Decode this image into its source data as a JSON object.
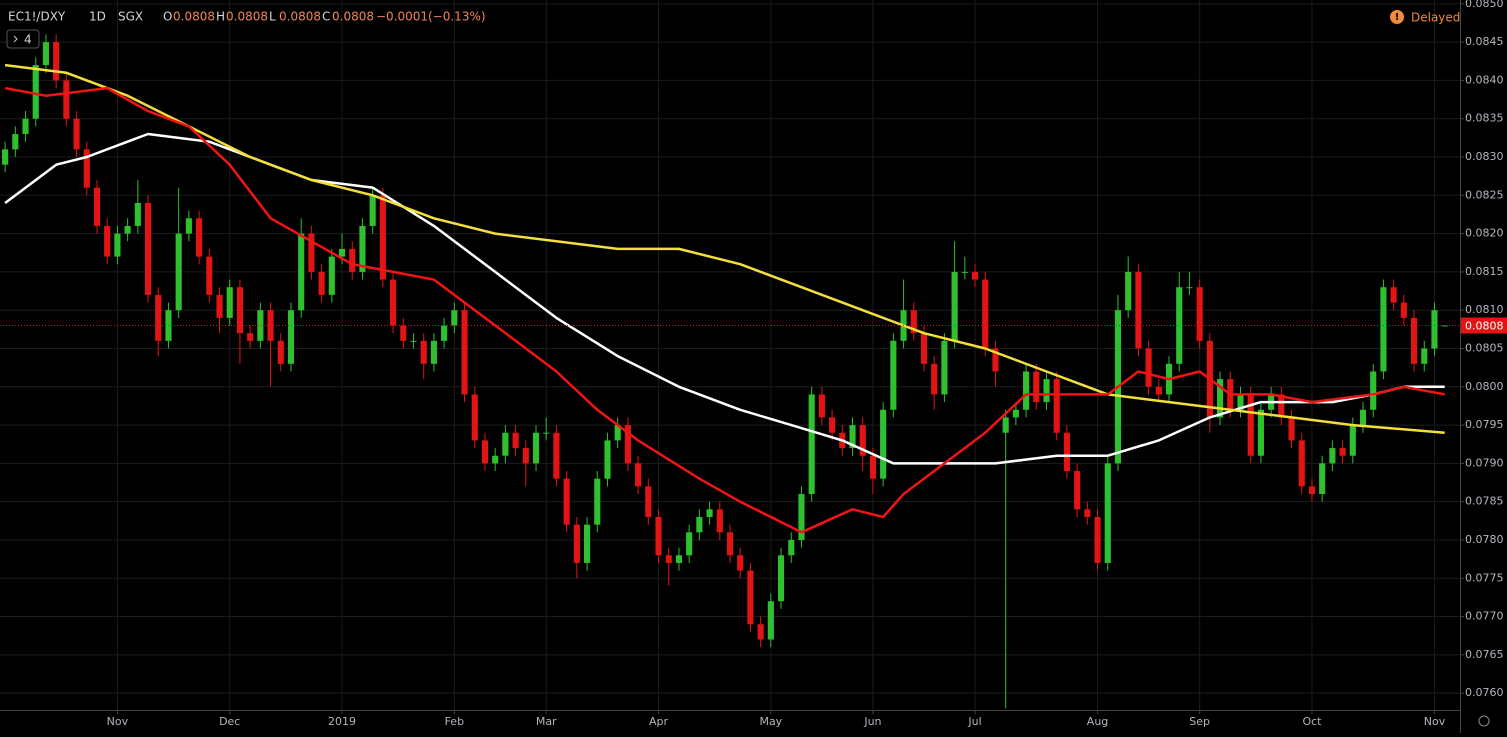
{
  "chart_data": {
    "type": "candlestick",
    "symbol": "EC1!/DXY",
    "interval": "1D",
    "exchange": "SGX",
    "ohlc": [
      {
        "label": "O",
        "value": "0.0808"
      },
      {
        "label": "H",
        "value": "0.0808"
      },
      {
        "label": "L",
        "value": "0.0808"
      },
      {
        "label": "C",
        "value": "0.0808"
      }
    ],
    "change": "−0.0001",
    "change_pct": "(−0.13%)",
    "indicators_button": "4",
    "status": "Delayed",
    "last_price": {
      "value": 0.0808,
      "label": "0.0808"
    },
    "up_color": "#2fbf2f",
    "down_color": "#e31414",
    "grid": true,
    "ylim": [
      0.07578,
      0.08505
    ],
    "xlim": [
      -0.5,
      142.5
    ],
    "yticks": [
      {
        "value": 0.076,
        "label": "0.0760"
      },
      {
        "value": 0.0765,
        "label": "0.0765"
      },
      {
        "value": 0.077,
        "label": "0.0770"
      },
      {
        "value": 0.0775,
        "label": "0.0775"
      },
      {
        "value": 0.078,
        "label": "0.0780"
      },
      {
        "value": 0.0785,
        "label": "0.0785"
      },
      {
        "value": 0.079,
        "label": "0.0790"
      },
      {
        "value": 0.0795,
        "label": "0.0795"
      },
      {
        "value": 0.08,
        "label": "0.0800"
      },
      {
        "value": 0.0805,
        "label": "0.0805"
      },
      {
        "value": 0.081,
        "label": "0.0810"
      },
      {
        "value": 0.0815,
        "label": "0.0815"
      },
      {
        "value": 0.082,
        "label": "0.0820"
      },
      {
        "value": 0.0825,
        "label": "0.0825"
      },
      {
        "value": 0.083,
        "label": "0.0830"
      },
      {
        "value": 0.0835,
        "label": "0.0835"
      },
      {
        "value": 0.084,
        "label": "0.0840"
      },
      {
        "value": 0.0845,
        "label": "0.0845"
      },
      {
        "value": 0.085,
        "label": "0.0850"
      }
    ],
    "xticks": [
      {
        "value": 11,
        "label": "Nov"
      },
      {
        "value": 22,
        "label": "Dec"
      },
      {
        "value": 33,
        "label": "2019"
      },
      {
        "value": 44,
        "label": "Feb"
      },
      {
        "value": 53,
        "label": "Mar"
      },
      {
        "value": 64,
        "label": "Apr"
      },
      {
        "value": 75,
        "label": "May"
      },
      {
        "value": 85,
        "label": "Jun"
      },
      {
        "value": 95,
        "label": "Jul"
      },
      {
        "value": 107,
        "label": "Aug"
      },
      {
        "value": 117,
        "label": "Sep"
      },
      {
        "value": 128,
        "label": "Oct"
      },
      {
        "value": 140,
        "label": "Nov"
      }
    ],
    "candles": [
      [
        0.0829,
        0.0832,
        0.0828,
        0.0831
      ],
      [
        0.0831,
        0.0834,
        0.083,
        0.0833
      ],
      [
        0.0833,
        0.0836,
        0.0832,
        0.0835
      ],
      [
        0.0835,
        0.0843,
        0.0834,
        0.0842
      ],
      [
        0.0842,
        0.0846,
        0.0841,
        0.0845
      ],
      [
        0.0845,
        0.0846,
        0.0839,
        0.084
      ],
      [
        0.084,
        0.0841,
        0.0834,
        0.0835
      ],
      [
        0.0835,
        0.0836,
        0.083,
        0.0831
      ],
      [
        0.0831,
        0.0832,
        0.0825,
        0.0826
      ],
      [
        0.0826,
        0.0827,
        0.082,
        0.0821
      ],
      [
        0.0821,
        0.0822,
        0.0816,
        0.0817
      ],
      [
        0.0817,
        0.0821,
        0.0816,
        0.082
      ],
      [
        0.082,
        0.0822,
        0.0819,
        0.0821
      ],
      [
        0.0821,
        0.0827,
        0.082,
        0.0824
      ],
      [
        0.0824,
        0.0825,
        0.0811,
        0.0812
      ],
      [
        0.0812,
        0.0813,
        0.0804,
        0.0806
      ],
      [
        0.0806,
        0.0811,
        0.0805,
        0.081
      ],
      [
        0.081,
        0.0826,
        0.0809,
        0.082
      ],
      [
        0.082,
        0.0823,
        0.0819,
        0.0822
      ],
      [
        0.0822,
        0.0823,
        0.0816,
        0.0817
      ],
      [
        0.0817,
        0.0818,
        0.0811,
        0.0812
      ],
      [
        0.0812,
        0.0813,
        0.0807,
        0.0809
      ],
      [
        0.0809,
        0.0814,
        0.0808,
        0.0813
      ],
      [
        0.0813,
        0.0814,
        0.0803,
        0.0807
      ],
      [
        0.0807,
        0.0808,
        0.0805,
        0.0806
      ],
      [
        0.0806,
        0.0811,
        0.0805,
        0.081
      ],
      [
        0.081,
        0.0811,
        0.08,
        0.0806
      ],
      [
        0.0806,
        0.0807,
        0.0802,
        0.0803
      ],
      [
        0.0803,
        0.0811,
        0.0802,
        0.081
      ],
      [
        0.081,
        0.0822,
        0.0809,
        0.082
      ],
      [
        0.082,
        0.0821,
        0.0814,
        0.0815
      ],
      [
        0.0815,
        0.0816,
        0.0811,
        0.0812
      ],
      [
        0.0812,
        0.0818,
        0.0811,
        0.0817
      ],
      [
        0.0817,
        0.082,
        0.0816,
        0.0818
      ],
      [
        0.0818,
        0.0819,
        0.0814,
        0.0815
      ],
      [
        0.0815,
        0.0822,
        0.0814,
        0.0821
      ],
      [
        0.0821,
        0.0826,
        0.082,
        0.0825
      ],
      [
        0.0825,
        0.0826,
        0.0813,
        0.0814
      ],
      [
        0.0814,
        0.0815,
        0.0807,
        0.0808
      ],
      [
        0.0808,
        0.0809,
        0.0805,
        0.0806
      ],
      [
        0.0806,
        0.0807,
        0.0805,
        0.0806
      ],
      [
        0.0806,
        0.0807,
        0.0801,
        0.0803
      ],
      [
        0.0803,
        0.0807,
        0.0802,
        0.0806
      ],
      [
        0.0806,
        0.0809,
        0.0805,
        0.0808
      ],
      [
        0.0808,
        0.0811,
        0.0807,
        0.081
      ],
      [
        0.081,
        0.0811,
        0.0798,
        0.0799
      ],
      [
        0.0799,
        0.08,
        0.0792,
        0.0793
      ],
      [
        0.0793,
        0.0794,
        0.0789,
        0.079
      ],
      [
        0.079,
        0.0792,
        0.0789,
        0.0791
      ],
      [
        0.0791,
        0.0795,
        0.079,
        0.0794
      ],
      [
        0.0794,
        0.0795,
        0.0791,
        0.0792
      ],
      [
        0.0792,
        0.0793,
        0.0787,
        0.079
      ],
      [
        0.079,
        0.0795,
        0.0789,
        0.0794
      ],
      [
        0.0794,
        0.0796,
        0.0793,
        0.0794
      ],
      [
        0.0794,
        0.0795,
        0.0787,
        0.0788
      ],
      [
        0.0788,
        0.0789,
        0.0781,
        0.0782
      ],
      [
        0.0782,
        0.0783,
        0.0775,
        0.0777
      ],
      [
        0.0777,
        0.0783,
        0.0776,
        0.0782
      ],
      [
        0.0782,
        0.0789,
        0.0781,
        0.0788
      ],
      [
        0.0788,
        0.0794,
        0.0787,
        0.0793
      ],
      [
        0.0793,
        0.0796,
        0.0792,
        0.0795
      ],
      [
        0.0795,
        0.0796,
        0.0789,
        0.079
      ],
      [
        0.079,
        0.0791,
        0.0786,
        0.0787
      ],
      [
        0.0787,
        0.0788,
        0.0782,
        0.0783
      ],
      [
        0.0783,
        0.0784,
        0.0777,
        0.0778
      ],
      [
        0.0778,
        0.0779,
        0.0774,
        0.0777
      ],
      [
        0.0777,
        0.0779,
        0.0776,
        0.0778
      ],
      [
        0.0778,
        0.0782,
        0.0777,
        0.0781
      ],
      [
        0.0781,
        0.0784,
        0.078,
        0.0783
      ],
      [
        0.0783,
        0.0785,
        0.0782,
        0.0784
      ],
      [
        0.0784,
        0.0785,
        0.078,
        0.0781
      ],
      [
        0.0781,
        0.0782,
        0.0777,
        0.0778
      ],
      [
        0.0778,
        0.0779,
        0.0775,
        0.0776
      ],
      [
        0.0776,
        0.0777,
        0.0768,
        0.0769
      ],
      [
        0.0769,
        0.077,
        0.0766,
        0.0767
      ],
      [
        0.0767,
        0.0773,
        0.0766,
        0.0772
      ],
      [
        0.0772,
        0.0779,
        0.0771,
        0.0778
      ],
      [
        0.0778,
        0.0781,
        0.0777,
        0.078
      ],
      [
        0.078,
        0.0787,
        0.0779,
        0.0786
      ],
      [
        0.0786,
        0.08,
        0.0785,
        0.0799
      ],
      [
        0.0799,
        0.08,
        0.0795,
        0.0796
      ],
      [
        0.0796,
        0.0797,
        0.0793,
        0.0794
      ],
      [
        0.0794,
        0.0795,
        0.0791,
        0.0792
      ],
      [
        0.0792,
        0.0796,
        0.0791,
        0.0795
      ],
      [
        0.0795,
        0.0796,
        0.0789,
        0.0791
      ],
      [
        0.0791,
        0.0792,
        0.0786,
        0.0788
      ],
      [
        0.0788,
        0.0798,
        0.0787,
        0.0797
      ],
      [
        0.0797,
        0.0807,
        0.0796,
        0.0806
      ],
      [
        0.0806,
        0.0814,
        0.0805,
        0.081
      ],
      [
        0.081,
        0.0811,
        0.0806,
        0.0807
      ],
      [
        0.0807,
        0.0808,
        0.0802,
        0.0803
      ],
      [
        0.0803,
        0.0804,
        0.0797,
        0.0799
      ],
      [
        0.0799,
        0.0807,
        0.0798,
        0.0806
      ],
      [
        0.0806,
        0.0819,
        0.0805,
        0.0815
      ],
      [
        0.0815,
        0.0817,
        0.0814,
        0.0815
      ],
      [
        0.0815,
        0.0816,
        0.0813,
        0.0814
      ],
      [
        0.0814,
        0.0815,
        0.0804,
        0.0805
      ],
      [
        0.0805,
        0.0806,
        0.08,
        0.0802
      ],
      [
        0.0794,
        0.0797,
        0.0758,
        0.0796
      ],
      [
        0.0796,
        0.0798,
        0.0795,
        0.0797
      ],
      [
        0.0797,
        0.0803,
        0.0796,
        0.0802
      ],
      [
        0.0802,
        0.0803,
        0.0797,
        0.0798
      ],
      [
        0.0798,
        0.0802,
        0.0797,
        0.0801
      ],
      [
        0.0801,
        0.0802,
        0.0793,
        0.0794
      ],
      [
        0.0794,
        0.0795,
        0.0788,
        0.0789
      ],
      [
        0.0789,
        0.079,
        0.0783,
        0.0784
      ],
      [
        0.0784,
        0.0785,
        0.0782,
        0.0783
      ],
      [
        0.0783,
        0.0784,
        0.0776,
        0.0777
      ],
      [
        0.0777,
        0.0791,
        0.0776,
        0.079
      ],
      [
        0.079,
        0.0812,
        0.0789,
        0.081
      ],
      [
        0.081,
        0.0817,
        0.0809,
        0.0815
      ],
      [
        0.0815,
        0.0816,
        0.0804,
        0.0805
      ],
      [
        0.0805,
        0.0806,
        0.0799,
        0.08
      ],
      [
        0.08,
        0.0801,
        0.0798,
        0.0799
      ],
      [
        0.0799,
        0.0804,
        0.0798,
        0.0803
      ],
      [
        0.0803,
        0.0815,
        0.0802,
        0.0813
      ],
      [
        0.0813,
        0.0815,
        0.0812,
        0.0813
      ],
      [
        0.0813,
        0.0814,
        0.0805,
        0.0806
      ],
      [
        0.0806,
        0.0807,
        0.0794,
        0.0796
      ],
      [
        0.0796,
        0.0802,
        0.0795,
        0.0801
      ],
      [
        0.0801,
        0.0802,
        0.0796,
        0.0797
      ],
      [
        0.0797,
        0.08,
        0.0796,
        0.0799
      ],
      [
        0.0799,
        0.08,
        0.079,
        0.0791
      ],
      [
        0.0791,
        0.0798,
        0.079,
        0.0797
      ],
      [
        0.0797,
        0.08,
        0.0796,
        0.0799
      ],
      [
        0.0799,
        0.08,
        0.0795,
        0.0796
      ],
      [
        0.0796,
        0.0797,
        0.0792,
        0.0793
      ],
      [
        0.0793,
        0.0794,
        0.0786,
        0.0787
      ],
      [
        0.0787,
        0.0788,
        0.0785,
        0.0786
      ],
      [
        0.0786,
        0.0791,
        0.0785,
        0.079
      ],
      [
        0.079,
        0.0793,
        0.0789,
        0.0792
      ],
      [
        0.0792,
        0.0793,
        0.079,
        0.0791
      ],
      [
        0.0791,
        0.0796,
        0.079,
        0.0795
      ],
      [
        0.0795,
        0.0798,
        0.0794,
        0.0797
      ],
      [
        0.0797,
        0.0803,
        0.0796,
        0.0802
      ],
      [
        0.0802,
        0.0814,
        0.0801,
        0.0813
      ],
      [
        0.0813,
        0.0814,
        0.081,
        0.0811
      ],
      [
        0.0811,
        0.0812,
        0.0808,
        0.0809
      ],
      [
        0.0809,
        0.081,
        0.0802,
        0.0803
      ],
      [
        0.0803,
        0.0806,
        0.0802,
        0.0805
      ],
      [
        0.0805,
        0.0811,
        0.0804,
        0.081
      ],
      [
        0.0808,
        0.0808,
        0.0808,
        0.0808
      ]
    ],
    "series": [
      {
        "color": "#ffffff",
        "x": [
          0,
          5,
          8,
          14,
          20,
          26,
          30,
          36,
          42,
          48,
          54,
          60,
          66,
          72,
          77,
          82,
          87,
          92,
          97,
          103,
          108,
          113,
          118,
          123,
          130,
          134,
          137,
          141
        ],
        "values": [
          0.0824,
          0.0829,
          0.083,
          0.0833,
          0.0832,
          0.0829,
          0.0827,
          0.0826,
          0.0821,
          0.0815,
          0.0809,
          0.0804,
          0.08,
          0.0797,
          0.0795,
          0.0793,
          0.079,
          0.079,
          0.079,
          0.0791,
          0.0791,
          0.0793,
          0.0796,
          0.0798,
          0.0798,
          0.0799,
          0.08,
          0.08
        ]
      },
      {
        "color": "#f2df3a",
        "x": [
          0,
          6,
          12,
          18,
          24,
          30,
          36,
          42,
          48,
          54,
          60,
          66,
          72,
          78,
          84,
          90,
          96,
          102,
          108,
          114,
          120,
          126,
          132,
          141
        ],
        "values": [
          0.0842,
          0.0841,
          0.0838,
          0.0834,
          0.083,
          0.0827,
          0.0825,
          0.0822,
          0.082,
          0.0819,
          0.0818,
          0.0818,
          0.0816,
          0.0813,
          0.081,
          0.0807,
          0.0805,
          0.0802,
          0.0799,
          0.0798,
          0.0797,
          0.0796,
          0.0795,
          0.0794
        ]
      },
      {
        "color": "#f01414",
        "x": [
          0,
          4,
          10,
          14,
          18,
          22,
          26,
          30,
          34,
          38,
          42,
          46,
          50,
          54,
          58,
          62,
          68,
          72,
          78,
          83,
          86,
          88,
          92,
          96,
          100,
          104,
          108,
          111,
          114,
          117,
          120,
          124,
          128,
          134,
          137,
          141
        ],
        "values": [
          0.0839,
          0.0838,
          0.0839,
          0.0836,
          0.0834,
          0.0829,
          0.0822,
          0.0819,
          0.0816,
          0.0815,
          0.0814,
          0.081,
          0.0806,
          0.0802,
          0.0797,
          0.0793,
          0.0788,
          0.0785,
          0.0781,
          0.0784,
          0.0783,
          0.0786,
          0.079,
          0.0794,
          0.0799,
          0.0799,
          0.0799,
          0.0802,
          0.0801,
          0.0802,
          0.0799,
          0.0799,
          0.0798,
          0.0799,
          0.08,
          0.0799
        ]
      }
    ]
  }
}
